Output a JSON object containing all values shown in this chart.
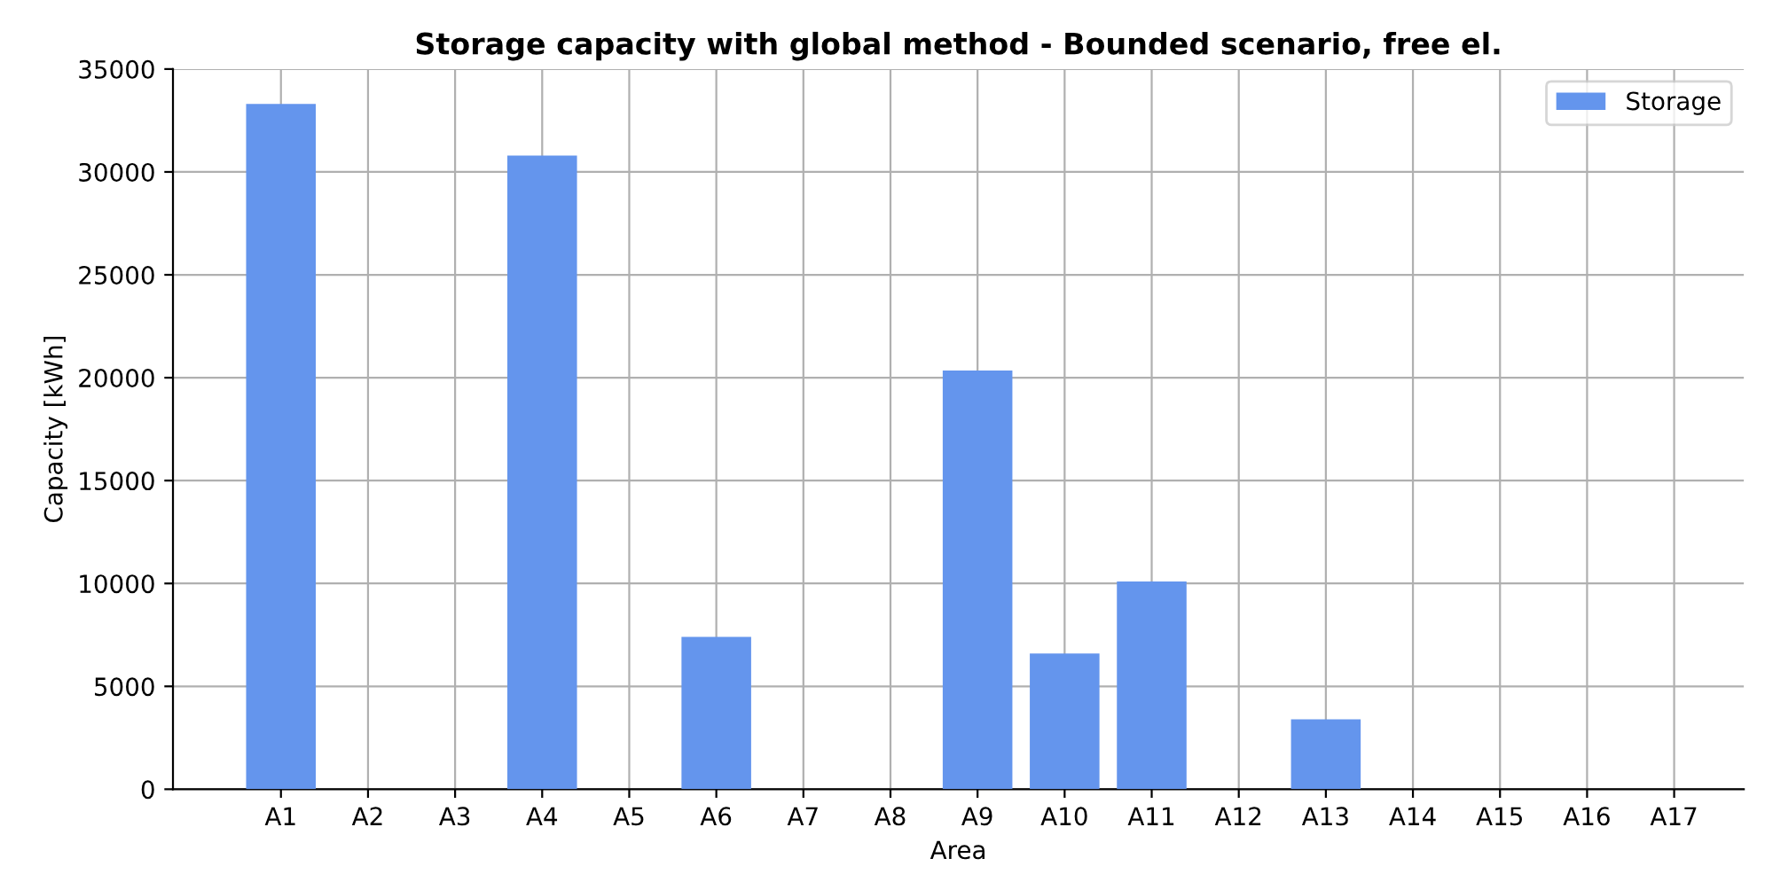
{
  "chart_data": {
    "type": "bar",
    "title": "Storage capacity with global method - Bounded scenario, free el.",
    "xlabel": "Area",
    "ylabel": "Capacity [kWh]",
    "categories": [
      "A1",
      "A2",
      "A3",
      "A4",
      "A5",
      "A6",
      "A7",
      "A8",
      "A9",
      "A10",
      "A11",
      "A12",
      "A13",
      "A14",
      "A15",
      "A16",
      "A17"
    ],
    "series": [
      {
        "name": "Storage",
        "color": "#6495ed",
        "values": [
          33300,
          0,
          0,
          30800,
          0,
          7400,
          0,
          0,
          20350,
          6600,
          10100,
          0,
          3400,
          0,
          0,
          0,
          0
        ]
      }
    ],
    "ylim": [
      0,
      35000
    ],
    "yticks": [
      0,
      5000,
      10000,
      15000,
      20000,
      25000,
      30000,
      35000
    ],
    "grid": true,
    "legend": "top right"
  }
}
